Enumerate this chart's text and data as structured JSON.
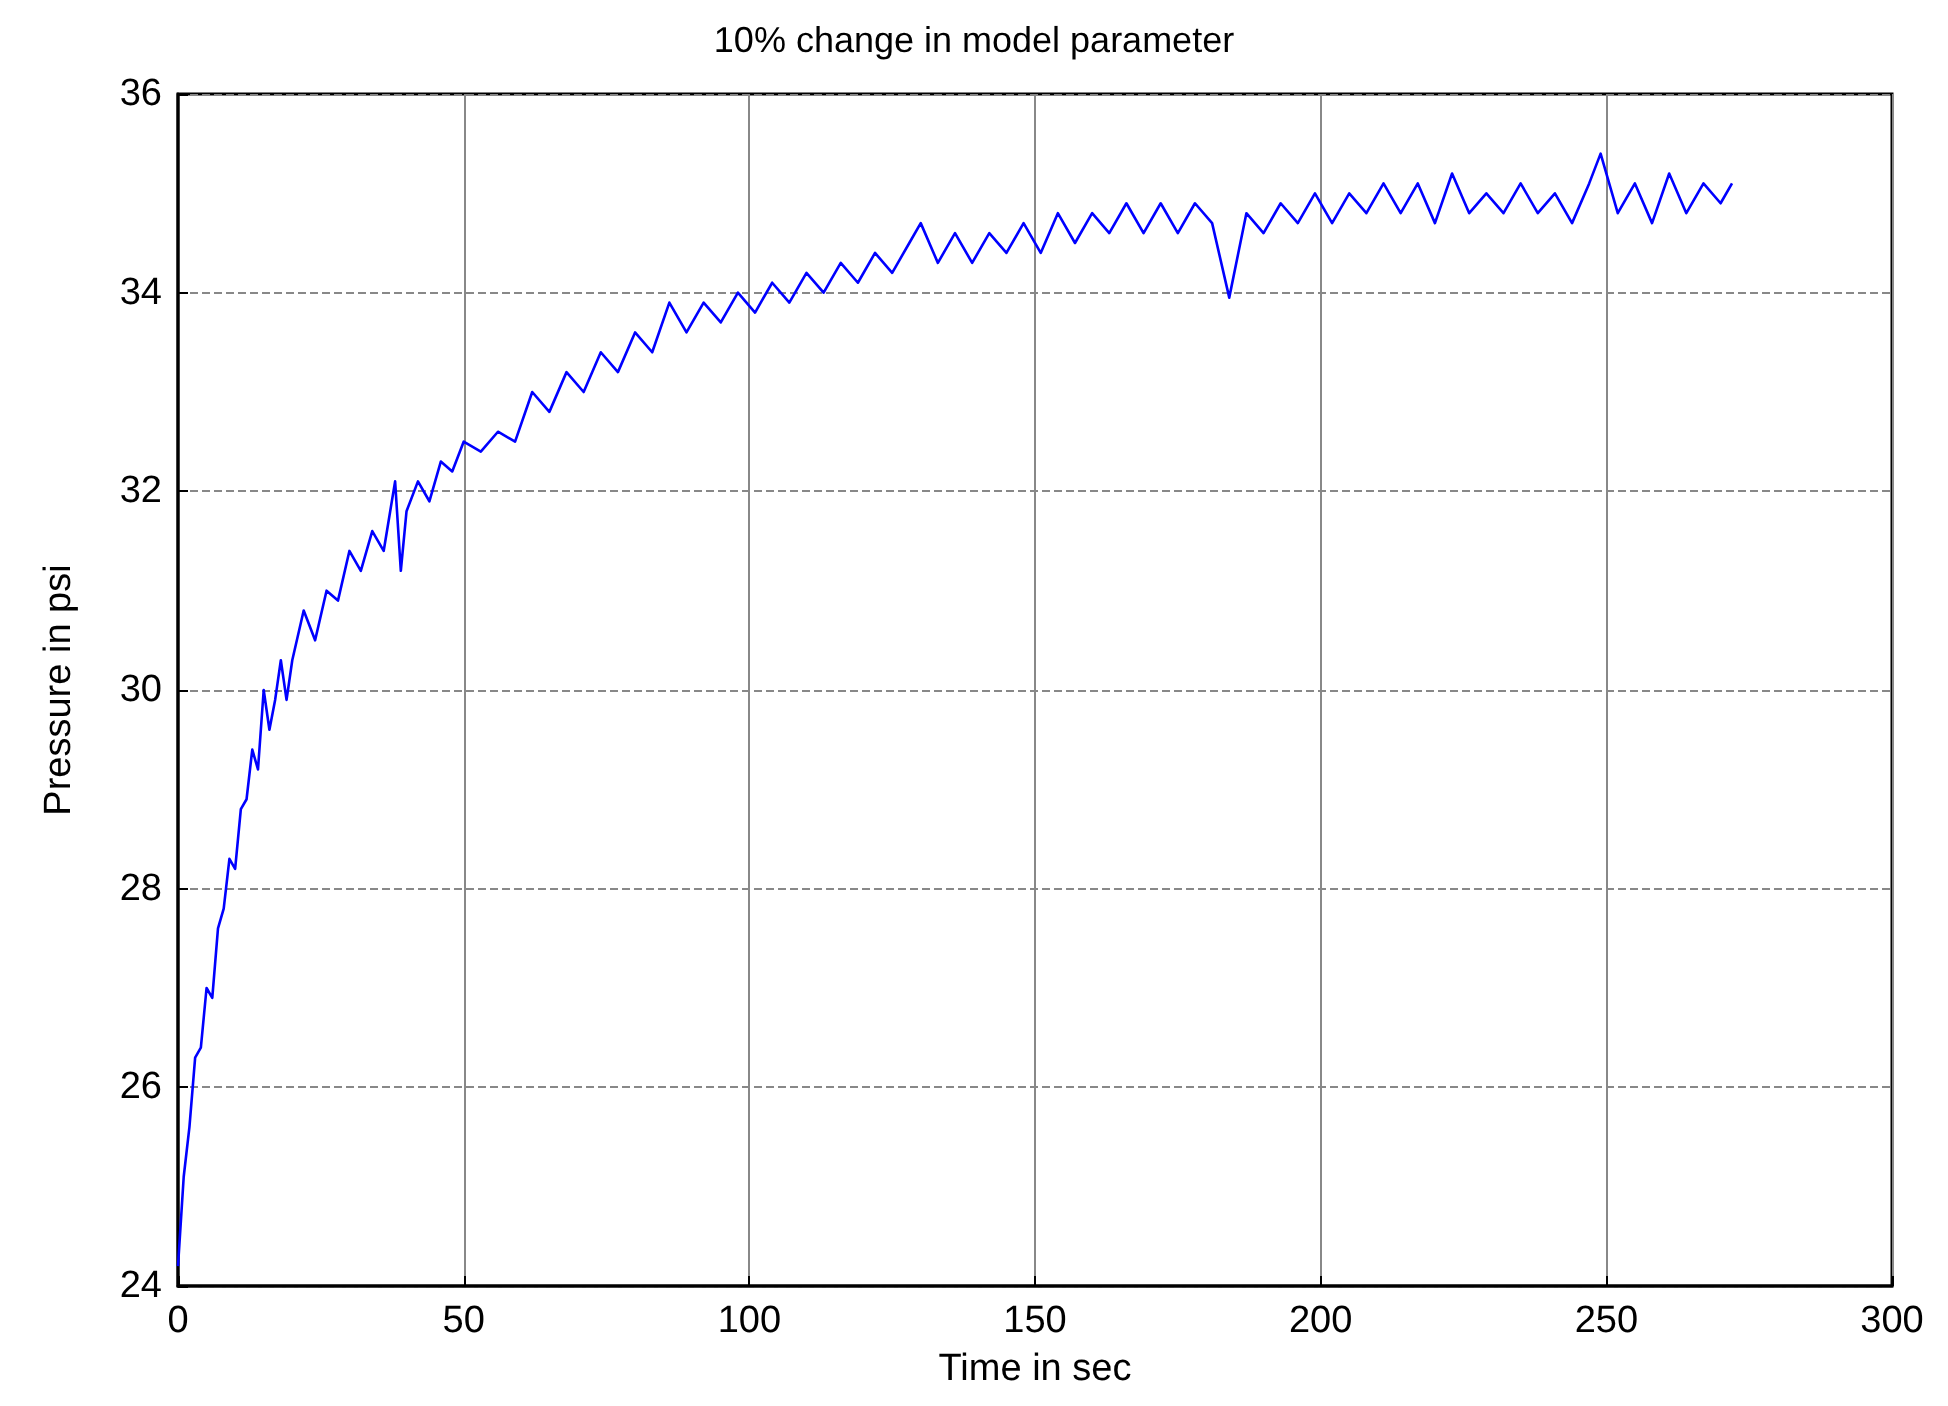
{
  "chart_data": {
    "type": "line",
    "title": "10% change in model parameter",
    "xlabel": "Time in sec",
    "ylabel": "Pressure in psi",
    "x": [
      0,
      1,
      2,
      3,
      4,
      5,
      6,
      7,
      8,
      9,
      10,
      11,
      12,
      13,
      14,
      15,
      16,
      17,
      18,
      19,
      20,
      22,
      24,
      26,
      28,
      30,
      32,
      34,
      36,
      38,
      39,
      40,
      42,
      44,
      46,
      48,
      50,
      53,
      56,
      59,
      62,
      65,
      68,
      71,
      74,
      77,
      80,
      83,
      86,
      89,
      92,
      95,
      98,
      101,
      104,
      107,
      110,
      113,
      116,
      119,
      122,
      125,
      128,
      130,
      133,
      136,
      139,
      142,
      145,
      148,
      151,
      154,
      157,
      160,
      163,
      166,
      169,
      172,
      175,
      178,
      181,
      184,
      187,
      190,
      193,
      196,
      199,
      202,
      205,
      208,
      211,
      214,
      217,
      220,
      223,
      226,
      229,
      232,
      235,
      238,
      241,
      244,
      247,
      249,
      252,
      255,
      258,
      261,
      264,
      267,
      270,
      272
    ],
    "series": [
      {
        "color": "#0000ff",
        "values": [
          24.2,
          25.1,
          25.6,
          26.3,
          26.4,
          27.0,
          26.9,
          27.6,
          27.8,
          28.3,
          28.2,
          28.8,
          28.9,
          29.4,
          29.2,
          30.0,
          29.6,
          29.9,
          30.3,
          29.9,
          30.3,
          30.8,
          30.5,
          31.0,
          30.9,
          31.4,
          31.2,
          31.6,
          31.4,
          32.1,
          31.2,
          31.8,
          32.1,
          31.9,
          32.3,
          32.2,
          32.5,
          32.4,
          32.6,
          32.5,
          33.0,
          32.8,
          33.2,
          33.0,
          33.4,
          33.2,
          33.6,
          33.4,
          33.9,
          33.6,
          33.9,
          33.7,
          34.0,
          33.8,
          34.1,
          33.9,
          34.2,
          34.0,
          34.3,
          34.1,
          34.4,
          34.2,
          34.5,
          34.7,
          34.3,
          34.6,
          34.3,
          34.6,
          34.4,
          34.7,
          34.4,
          34.8,
          34.5,
          34.8,
          34.6,
          34.9,
          34.6,
          34.9,
          34.6,
          34.9,
          34.7,
          33.95,
          34.8,
          34.6,
          34.9,
          34.7,
          35.0,
          34.7,
          35.0,
          34.8,
          35.1,
          34.8,
          35.1,
          34.7,
          35.2,
          34.8,
          35.0,
          34.8,
          35.1,
          34.8,
          35.0,
          34.7,
          35.1,
          35.4,
          34.8,
          35.1,
          34.7,
          35.2,
          34.8,
          35.1,
          34.9,
          35.1
        ]
      }
    ],
    "xlim": [
      0,
      300
    ],
    "xticks": [
      0,
      50,
      100,
      150,
      200,
      250,
      300
    ],
    "ylim": [
      24,
      36
    ],
    "yticks": [
      24,
      26,
      28,
      30,
      32,
      34,
      36
    ],
    "grid": true,
    "marker": "none",
    "line_style": "solid"
  }
}
